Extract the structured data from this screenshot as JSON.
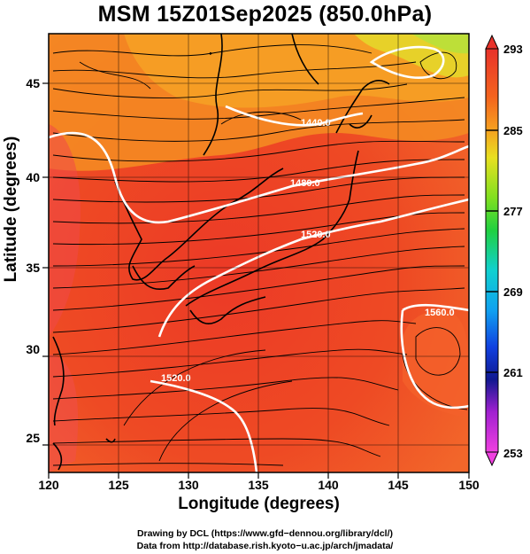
{
  "title": "MSM 15Z01Sep2025 (850.0hPa)",
  "axes": {
    "xlabel": "Longitude (degrees)",
    "ylabel": "Latitude  (degrees)",
    "xticks": [
      "120",
      "125",
      "130",
      "135",
      "140",
      "145",
      "150"
    ],
    "yticks": [
      "25",
      "30",
      "35",
      "40",
      "45"
    ],
    "xlim": [
      120,
      150
    ],
    "ylim": [
      22.5,
      47.5
    ]
  },
  "colorbar": {
    "ticks": [
      "293",
      "285",
      "277",
      "269",
      "261",
      "253"
    ],
    "range": [
      253,
      293
    ]
  },
  "contours": [
    {
      "label": "1440.0"
    },
    {
      "label": "1480.0"
    },
    {
      "label": "1520.0"
    },
    {
      "label": "1560.0"
    },
    {
      "label": "1520.0"
    }
  ],
  "credits": {
    "line1": "Drawing by DCL (https://www.gfd−dennou.org/library/dcl/)",
    "line2": "Data from http://database.rish.kyoto−u.ac.jp/arch/jmadata/"
  },
  "colors": {
    "warm_core": "#e8322a",
    "mid": "#f4641e",
    "cool_north": "#f6a020",
    "lime": "#d8e020"
  }
}
